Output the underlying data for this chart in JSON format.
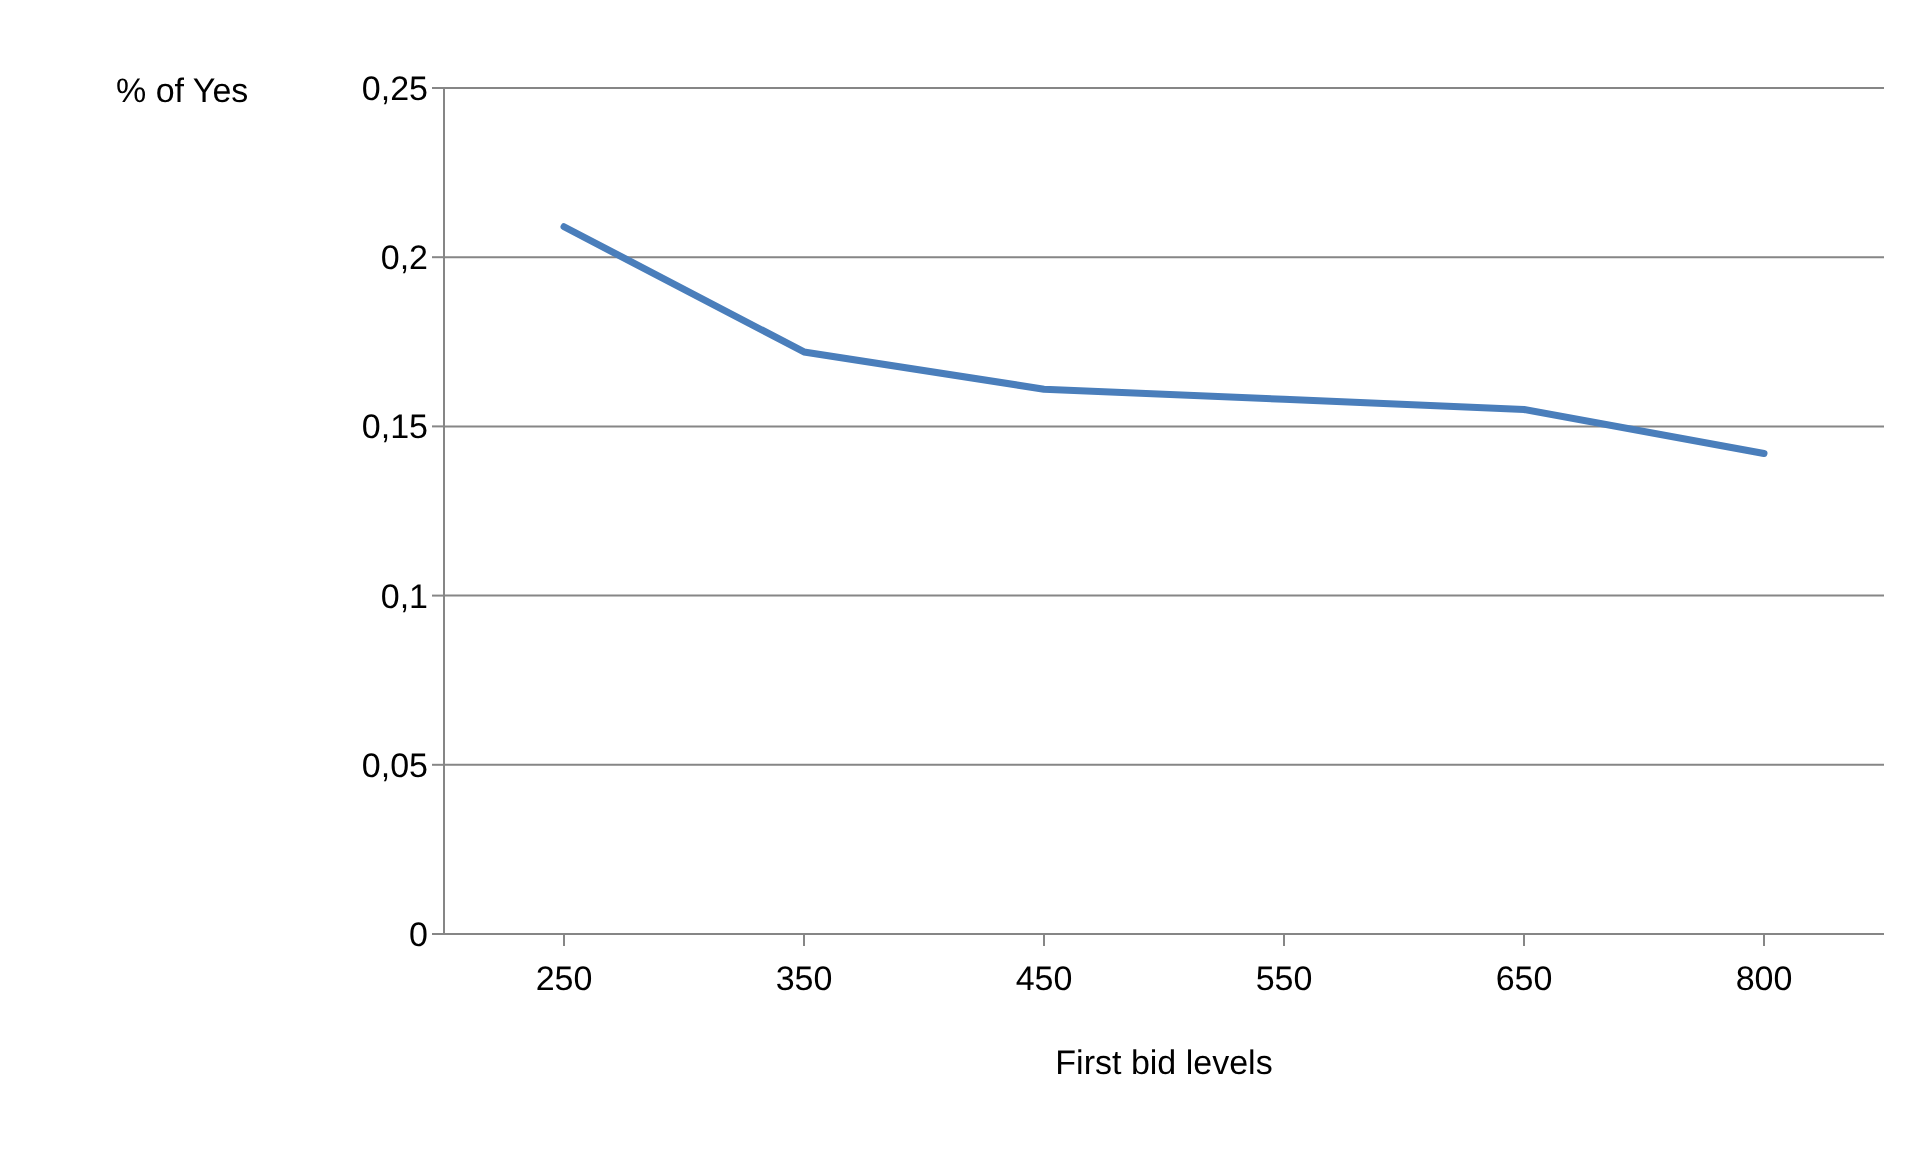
{
  "chart_data": {
    "type": "line",
    "xlabel": "First bid levels",
    "ylabel": "% of Yes",
    "categories": [
      "250",
      "350",
      "450",
      "550",
      "650",
      "800"
    ],
    "series": [
      {
        "color": "#4a7ebb",
        "values": [
          0.209,
          0.172,
          0.161,
          0.158,
          0.155,
          0.142
        ]
      }
    ],
    "ylim": [
      0,
      0.25
    ],
    "yticks": [
      {
        "value": 0,
        "label": "0"
      },
      {
        "value": 0.05,
        "label": "0,05"
      },
      {
        "value": 0.1,
        "label": "0,1"
      },
      {
        "value": 0.15,
        "label": "0,15"
      },
      {
        "value": 0.2,
        "label": "0,2"
      },
      {
        "value": 0.25,
        "label": "0,25"
      }
    ],
    "grid": "y",
    "legend": false,
    "marker": "none",
    "line_style": "solid"
  }
}
